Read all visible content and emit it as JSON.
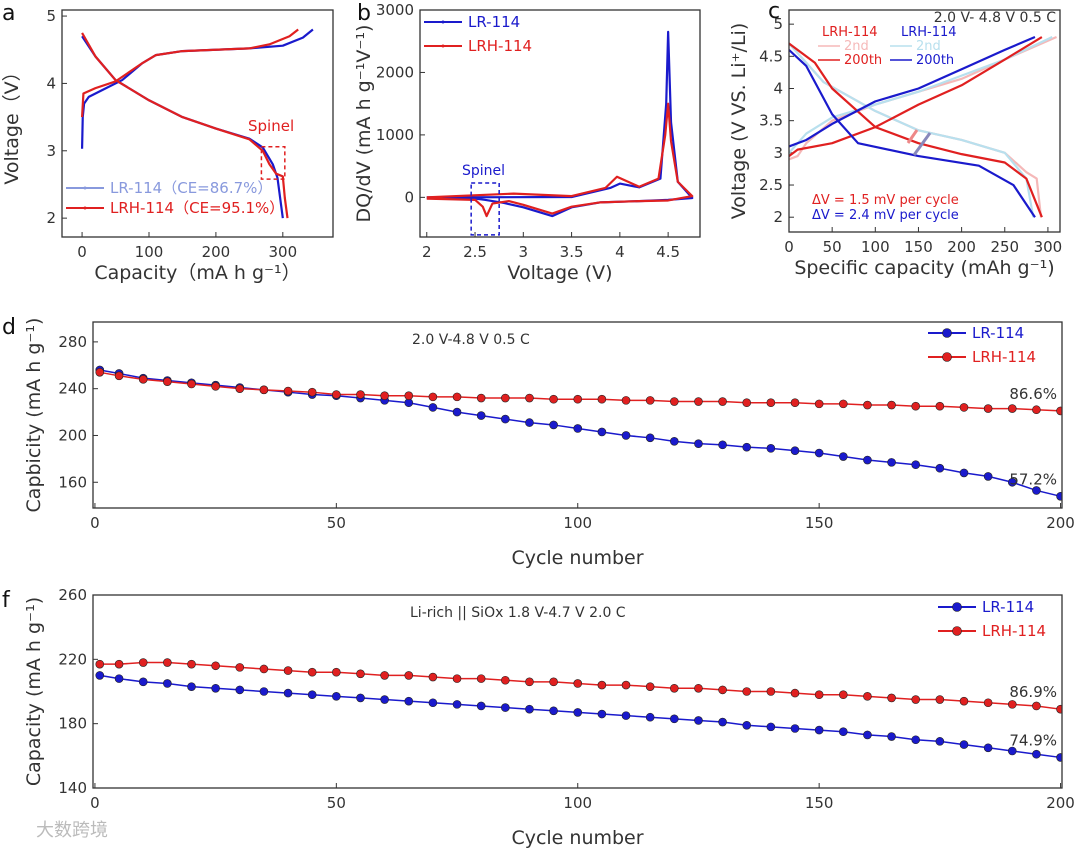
{
  "watermark": "大数跨境",
  "colors": {
    "lr": "#1a1acc",
    "lrh": "#e02020",
    "lr_light": "#b8e0ee",
    "lrh_light": "#f5b8b8"
  },
  "chart_data": [
    {
      "panel": "a",
      "type": "line",
      "xlabel": "Capacity（mA h g⁻¹）",
      "ylabel": "Voltage（V）",
      "xlim": [
        -30,
        375
      ],
      "ylim": [
        1.72,
        5.09
      ],
      "xticks": [
        0,
        100,
        200,
        300
      ],
      "yticks": [
        2,
        3,
        4,
        5
      ],
      "legend": [
        "LR-114（CE=86.7%）",
        "LRH-114（CE=95.1%）"
      ],
      "annotations": [
        "Spinel"
      ],
      "series": [
        {
          "name": "LR-114 charge",
          "color": "lr",
          "points": [
            [
              0,
              3.03
            ],
            [
              1,
              3.5
            ],
            [
              3,
              3.7
            ],
            [
              10,
              3.8
            ],
            [
              30,
              3.9
            ],
            [
              60,
              4.05
            ],
            [
              90,
              4.3
            ],
            [
              110,
              4.42
            ],
            [
              150,
              4.48
            ],
            [
              250,
              4.52
            ],
            [
              300,
              4.56
            ],
            [
              330,
              4.68
            ],
            [
              345,
              4.8
            ]
          ]
        },
        {
          "name": "LR-114 discharge",
          "color": "lr",
          "points": [
            [
              0,
              4.7
            ],
            [
              20,
              4.4
            ],
            [
              50,
              4.05
            ],
            [
              100,
              3.75
            ],
            [
              150,
              3.5
            ],
            [
              200,
              3.33
            ],
            [
              250,
              3.18
            ],
            [
              270,
              3.05
            ],
            [
              285,
              2.8
            ],
            [
              292,
              2.6
            ],
            [
              300,
              2.0
            ]
          ]
        },
        {
          "name": "LRH-114 charge",
          "color": "lrh",
          "points": [
            [
              0,
              3.5
            ],
            [
              2,
              3.85
            ],
            [
              20,
              3.93
            ],
            [
              50,
              4.03
            ],
            [
              90,
              4.3
            ],
            [
              110,
              4.42
            ],
            [
              150,
              4.48
            ],
            [
              250,
              4.52
            ],
            [
              280,
              4.58
            ],
            [
              310,
              4.7
            ],
            [
              323,
              4.8
            ]
          ]
        },
        {
          "name": "LRH-114 discharge",
          "color": "lrh",
          "points": [
            [
              0,
              4.75
            ],
            [
              20,
              4.4
            ],
            [
              50,
              4.05
            ],
            [
              100,
              3.75
            ],
            [
              150,
              3.5
            ],
            [
              200,
              3.33
            ],
            [
              250,
              3.17
            ],
            [
              270,
              3.0
            ],
            [
              280,
              2.8
            ],
            [
              290,
              2.66
            ],
            [
              300,
              2.62
            ],
            [
              303,
              2.3
            ],
            [
              307,
              2.0
            ]
          ]
        }
      ]
    },
    {
      "panel": "b",
      "type": "line",
      "xlabel": "Voltage (V)",
      "ylabel": "DQ/dV (mA h g⁻¹V⁻¹)",
      "xlim": [
        1.93,
        4.83
      ],
      "ylim": [
        -635,
        3000
      ],
      "xticks": [
        2,
        2.5,
        3,
        3.5,
        4,
        4.5
      ],
      "yticks": [
        0,
        1000,
        2000,
        3000
      ],
      "legend": [
        "LR-114",
        "LRH-114"
      ],
      "annotations": [
        "Spinel"
      ],
      "series": [
        {
          "name": "LR-114",
          "color": "lr",
          "points": [
            [
              2.0,
              -10
            ],
            [
              2.5,
              -20
            ],
            [
              2.6,
              -40
            ],
            [
              2.8,
              -90
            ],
            [
              3.0,
              -160
            ],
            [
              3.3,
              -300
            ],
            [
              3.5,
              -160
            ],
            [
              3.8,
              -80
            ],
            [
              4.2,
              -60
            ],
            [
              4.5,
              -40
            ],
            [
              4.75,
              -10
            ],
            [
              4.6,
              250
            ],
            [
              4.53,
              1200
            ],
            [
              4.5,
              2650
            ],
            [
              4.48,
              1500
            ],
            [
              4.42,
              300
            ],
            [
              4.2,
              160
            ],
            [
              4.0,
              220
            ],
            [
              3.9,
              150
            ],
            [
              3.5,
              5
            ],
            [
              2.0,
              0
            ]
          ]
        },
        {
          "name": "LRH-114",
          "color": "lrh",
          "points": [
            [
              2.0,
              -20
            ],
            [
              2.5,
              -40
            ],
            [
              2.58,
              -150
            ],
            [
              2.62,
              -300
            ],
            [
              2.68,
              -100
            ],
            [
              2.85,
              -60
            ],
            [
              3.0,
              -120
            ],
            [
              3.3,
              -260
            ],
            [
              3.5,
              -150
            ],
            [
              3.8,
              -80
            ],
            [
              4.2,
              -60
            ],
            [
              4.5,
              -50
            ],
            [
              4.75,
              20
            ],
            [
              4.6,
              250
            ],
            [
              4.53,
              900
            ],
            [
              4.5,
              1500
            ],
            [
              4.47,
              1000
            ],
            [
              4.4,
              300
            ],
            [
              4.2,
              170
            ],
            [
              3.97,
              330
            ],
            [
              3.85,
              150
            ],
            [
              3.5,
              20
            ],
            [
              2.9,
              60
            ],
            [
              2.0,
              0
            ]
          ]
        }
      ]
    },
    {
      "panel": "c",
      "type": "line",
      "xlabel": "Specific capacity (mAh g⁻¹)",
      "ylabel": "Voltage (V VS. Li⁺/Li)",
      "xlim": [
        0,
        314
      ],
      "ylim": [
        1.77,
        5.22
      ],
      "xticks": [
        0,
        50,
        100,
        150,
        200,
        250,
        300
      ],
      "yticks": [
        2,
        2.5,
        3,
        3.5,
        4,
        4.5,
        5
      ],
      "title": "2.0 V- 4.8 V 0.5 C",
      "legend_headers": [
        "LRH-114",
        "LRH-114"
      ],
      "legend": [
        "2nd",
        "200th",
        "2nd",
        "200th"
      ],
      "annotations": [
        "ΔV =  1.5 mV per cycle",
        "ΔV =  2.4 mV per cycle"
      ],
      "series": [
        {
          "name": "LRH-114 2nd charge",
          "color": "lrh_light",
          "points": [
            [
              0,
              2.9
            ],
            [
              10,
              2.95
            ],
            [
              20,
              3.15
            ],
            [
              50,
              3.5
            ],
            [
              100,
              3.75
            ],
            [
              150,
              3.95
            ],
            [
              200,
              4.15
            ],
            [
              250,
              4.45
            ],
            [
              310,
              4.8
            ]
          ]
        },
        {
          "name": "LRH-114 2nd discharge",
          "color": "lrh_light",
          "points": [
            [
              0,
              4.7
            ],
            [
              40,
              4.1
            ],
            [
              100,
              3.65
            ],
            [
              150,
              3.35
            ],
            [
              200,
              3.2
            ],
            [
              250,
              3.0
            ],
            [
              275,
              2.7
            ],
            [
              287,
              2.6
            ],
            [
              292,
              2.0
            ]
          ]
        },
        {
          "name": "LR-114 2nd charge",
          "color": "lr_light",
          "points": [
            [
              0,
              3.0
            ],
            [
              20,
              3.3
            ],
            [
              50,
              3.55
            ],
            [
              100,
              3.75
            ],
            [
              150,
              3.95
            ],
            [
              200,
              4.2
            ],
            [
              250,
              4.45
            ],
            [
              305,
              4.8
            ]
          ]
        },
        {
          "name": "LR-114 2nd discharge",
          "color": "lr_light",
          "points": [
            [
              0,
              4.7
            ],
            [
              40,
              4.1
            ],
            [
              100,
              3.65
            ],
            [
              150,
              3.35
            ],
            [
              200,
              3.2
            ],
            [
              250,
              3.0
            ],
            [
              275,
              2.6
            ],
            [
              283,
              2.0
            ]
          ]
        },
        {
          "name": "LRH-114 200th charge",
          "color": "lrh",
          "points": [
            [
              0,
              2.95
            ],
            [
              10,
              3.05
            ],
            [
              50,
              3.15
            ],
            [
              100,
              3.4
            ],
            [
              150,
              3.75
            ],
            [
              200,
              4.05
            ],
            [
              250,
              4.45
            ],
            [
              293,
              4.8
            ]
          ]
        },
        {
          "name": "LRH-114 200th discharge",
          "color": "lrh",
          "points": [
            [
              0,
              4.7
            ],
            [
              30,
              4.4
            ],
            [
              50,
              4.0
            ],
            [
              100,
              3.4
            ],
            [
              150,
              3.15
            ],
            [
              200,
              2.98
            ],
            [
              250,
              2.85
            ],
            [
              275,
              2.6
            ],
            [
              293,
              2.0
            ]
          ]
        },
        {
          "name": "LR-114 200th charge",
          "color": "lr",
          "points": [
            [
              0,
              3.1
            ],
            [
              20,
              3.2
            ],
            [
              50,
              3.45
            ],
            [
              100,
              3.8
            ],
            [
              150,
              4.0
            ],
            [
              200,
              4.3
            ],
            [
              250,
              4.6
            ],
            [
              285,
              4.8
            ]
          ]
        },
        {
          "name": "LR-114 200th discharge",
          "color": "lr",
          "points": [
            [
              0,
              4.6
            ],
            [
              20,
              4.35
            ],
            [
              50,
              3.6
            ],
            [
              80,
              3.15
            ],
            [
              150,
              2.95
            ],
            [
              220,
              2.8
            ],
            [
              260,
              2.5
            ],
            [
              285,
              2.0
            ]
          ]
        }
      ]
    },
    {
      "panel": "d",
      "type": "scatter",
      "xlabel": "Cycle number",
      "ylabel": "Capbicity (mA h g⁻¹)",
      "xlim": [
        -0.4,
        200.3
      ],
      "ylim": [
        138,
        297
      ],
      "xticks": [
        0,
        50,
        100,
        150,
        200
      ],
      "yticks": [
        160,
        200,
        240,
        280
      ],
      "title": "2.0 V-4.8 V 0.5 C",
      "legend": [
        "LR-114",
        "LRH-114"
      ],
      "end_labels": [
        "57.2%",
        "86.6%"
      ],
      "x": [
        1,
        5,
        10,
        15,
        20,
        25,
        30,
        35,
        40,
        45,
        50,
        55,
        60,
        65,
        70,
        75,
        80,
        85,
        90,
        95,
        100,
        105,
        110,
        115,
        120,
        125,
        130,
        135,
        140,
        145,
        150,
        155,
        160,
        165,
        170,
        175,
        180,
        185,
        190,
        195,
        200
      ],
      "series": [
        {
          "name": "LR-114",
          "color": "lr",
          "values": [
            256,
            253,
            249,
            247,
            245,
            243,
            241,
            239,
            237,
            235,
            234,
            232,
            230,
            228,
            224,
            220,
            217,
            214,
            211,
            209,
            206,
            203,
            200,
            198,
            195,
            193,
            192,
            190,
            189,
            187,
            185,
            182,
            179,
            177,
            175,
            172,
            168,
            165,
            160,
            153,
            148
          ]
        },
        {
          "name": "LRH-114",
          "color": "lrh",
          "values": [
            254,
            251,
            248,
            246,
            244,
            242,
            240,
            239,
            238,
            237,
            235,
            235,
            234,
            234,
            233,
            233,
            232,
            232,
            232,
            231,
            231,
            231,
            230,
            230,
            229,
            229,
            229,
            228,
            228,
            228,
            227,
            227,
            226,
            226,
            225,
            225,
            224,
            223,
            223,
            222,
            221
          ]
        }
      ]
    },
    {
      "panel": "f",
      "type": "scatter",
      "xlabel": "Cycle number",
      "ylabel": "Capacity (mA h g⁻¹)",
      "xlim": [
        -0.4,
        200.3
      ],
      "ylim": [
        140,
        260
      ],
      "xticks": [
        0,
        50,
        100,
        150,
        200
      ],
      "yticks": [
        140,
        180,
        220,
        260
      ],
      "title": "Li-rich || SiOx 1.8 V-4.7 V 2.0 C",
      "legend": [
        "LR-114",
        "LRH-114"
      ],
      "end_labels": [
        "74.9%",
        "86.9%"
      ],
      "x": [
        1,
        5,
        10,
        15,
        20,
        25,
        30,
        35,
        40,
        45,
        50,
        55,
        60,
        65,
        70,
        75,
        80,
        85,
        90,
        95,
        100,
        105,
        110,
        115,
        120,
        125,
        130,
        135,
        140,
        145,
        150,
        155,
        160,
        165,
        170,
        175,
        180,
        185,
        190,
        195,
        200
      ],
      "series": [
        {
          "name": "LR-114",
          "color": "lr",
          "values": [
            210,
            208,
            206,
            205,
            203,
            202,
            201,
            200,
            199,
            198,
            197,
            196,
            195,
            194,
            193,
            192,
            191,
            190,
            189,
            188,
            187,
            186,
            185,
            184,
            183,
            182,
            181,
            179,
            178,
            177,
            176,
            175,
            173,
            172,
            170,
            169,
            167,
            165,
            163,
            161,
            159
          ]
        },
        {
          "name": "LRH-114",
          "color": "lrh",
          "values": [
            217,
            217,
            218,
            218,
            217,
            216,
            215,
            214,
            213,
            212,
            212,
            211,
            210,
            210,
            209,
            208,
            208,
            207,
            206,
            206,
            205,
            204,
            204,
            203,
            202,
            202,
            201,
            200,
            200,
            199,
            198,
            198,
            197,
            196,
            195,
            195,
            194,
            193,
            192,
            191,
            189
          ]
        }
      ]
    }
  ]
}
